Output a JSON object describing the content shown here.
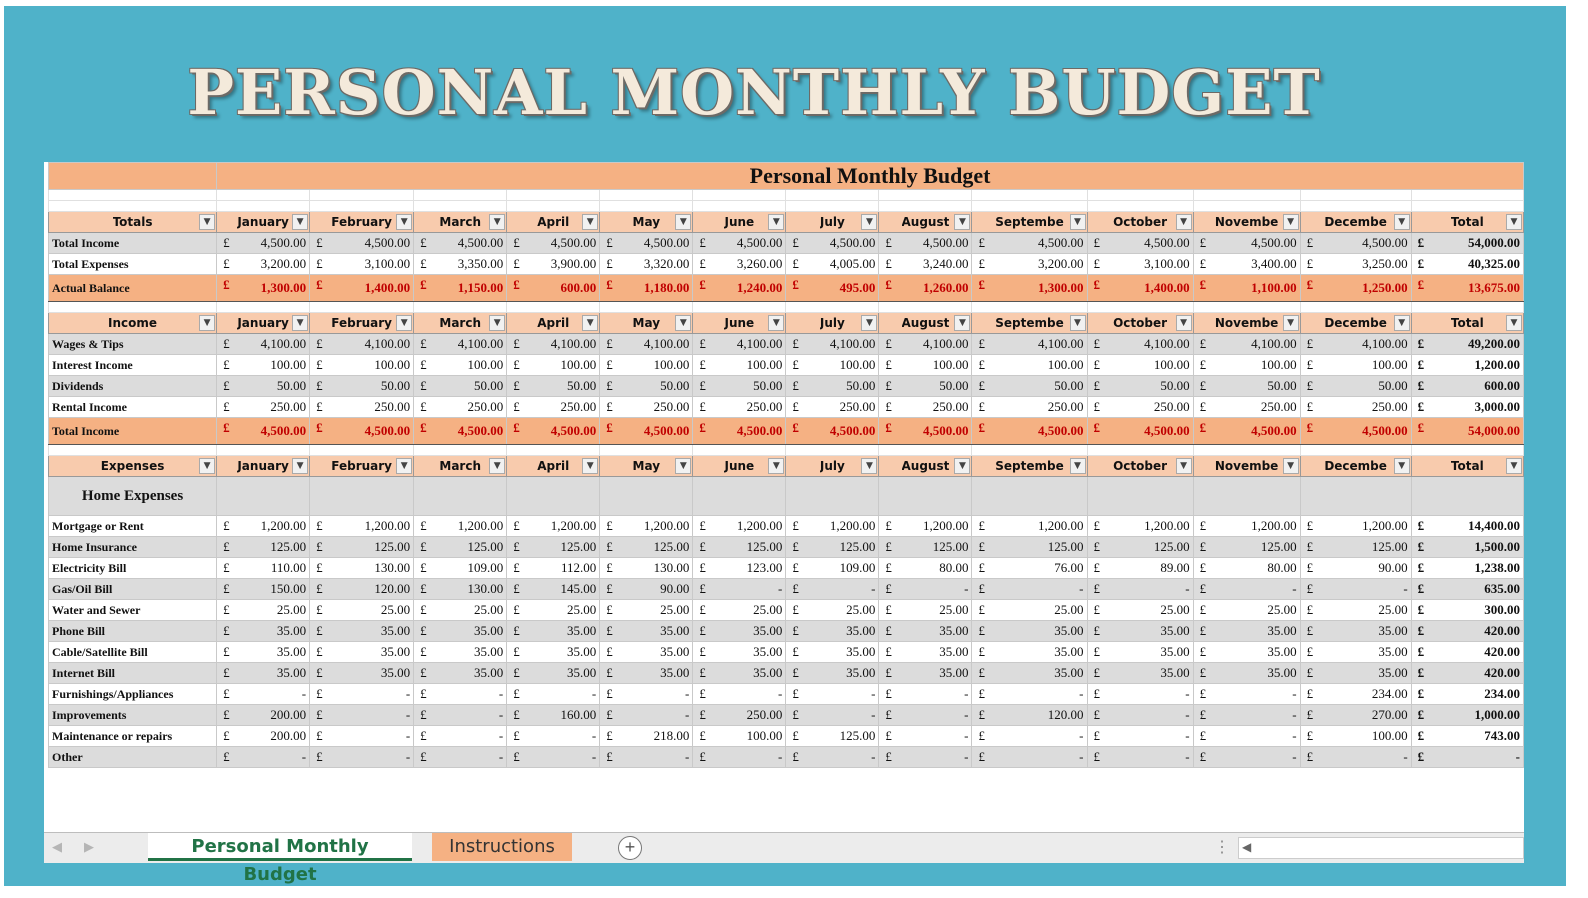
{
  "banner_title": "PERSONAL MONTHLY BUDGET",
  "sheet_title": "Personal Monthly Budget",
  "currency": "£",
  "months": [
    "January",
    "February",
    "March",
    "April",
    "May",
    "June",
    "July",
    "August",
    "September",
    "October",
    "November",
    "December",
    "Total"
  ],
  "header_display": [
    "January",
    "February",
    "March",
    "April",
    "May",
    "June",
    "July",
    "August",
    "Septembe",
    "October",
    "Novembe",
    "Decembe",
    "Total"
  ],
  "sections": [
    {
      "header": "Totals",
      "rows": [
        {
          "label": "Total Income",
          "style": "grey",
          "values": [
            "4,500.00",
            "4,500.00",
            "4,500.00",
            "4,500.00",
            "4,500.00",
            "4,500.00",
            "4,500.00",
            "4,500.00",
            "4,500.00",
            "4,500.00",
            "4,500.00",
            "4,500.00",
            "54,000.00"
          ]
        },
        {
          "label": "Total Expenses",
          "style": "white",
          "values": [
            "3,200.00",
            "3,100.00",
            "3,350.00",
            "3,900.00",
            "3,320.00",
            "3,260.00",
            "4,005.00",
            "3,240.00",
            "3,200.00",
            "3,100.00",
            "3,400.00",
            "3,250.00",
            "40,325.00"
          ]
        },
        {
          "label": "Actual Balance",
          "style": "sum",
          "values": [
            "1,300.00",
            "1,400.00",
            "1,150.00",
            "600.00",
            "1,180.00",
            "1,240.00",
            "495.00",
            "1,260.00",
            "1,300.00",
            "1,400.00",
            "1,100.00",
            "1,250.00",
            "13,675.00"
          ]
        }
      ]
    },
    {
      "header": "Income",
      "rows": [
        {
          "label": "Wages & Tips",
          "style": "grey",
          "values": [
            "4,100.00",
            "4,100.00",
            "4,100.00",
            "4,100.00",
            "4,100.00",
            "4,100.00",
            "4,100.00",
            "4,100.00",
            "4,100.00",
            "4,100.00",
            "4,100.00",
            "4,100.00",
            "49,200.00"
          ]
        },
        {
          "label": "Interest Income",
          "style": "white",
          "values": [
            "100.00",
            "100.00",
            "100.00",
            "100.00",
            "100.00",
            "100.00",
            "100.00",
            "100.00",
            "100.00",
            "100.00",
            "100.00",
            "100.00",
            "1,200.00"
          ]
        },
        {
          "label": "Dividends",
          "style": "grey",
          "values": [
            "50.00",
            "50.00",
            "50.00",
            "50.00",
            "50.00",
            "50.00",
            "50.00",
            "50.00",
            "50.00",
            "50.00",
            "50.00",
            "50.00",
            "600.00"
          ]
        },
        {
          "label": "Rental Income",
          "style": "white",
          "values": [
            "250.00",
            "250.00",
            "250.00",
            "250.00",
            "250.00",
            "250.00",
            "250.00",
            "250.00",
            "250.00",
            "250.00",
            "250.00",
            "250.00",
            "3,000.00"
          ]
        },
        {
          "label": "Total Income",
          "style": "sum",
          "values": [
            "4,500.00",
            "4,500.00",
            "4,500.00",
            "4,500.00",
            "4,500.00",
            "4,500.00",
            "4,500.00",
            "4,500.00",
            "4,500.00",
            "4,500.00",
            "4,500.00",
            "4,500.00",
            "54,000.00"
          ]
        }
      ]
    },
    {
      "header": "Expenses",
      "category": "Home Expenses",
      "rows": [
        {
          "label": "Mortgage or Rent",
          "style": "white",
          "values": [
            "1,200.00",
            "1,200.00",
            "1,200.00",
            "1,200.00",
            "1,200.00",
            "1,200.00",
            "1,200.00",
            "1,200.00",
            "1,200.00",
            "1,200.00",
            "1,200.00",
            "1,200.00",
            "14,400.00"
          ]
        },
        {
          "label": "Home Insurance",
          "style": "grey",
          "values": [
            "125.00",
            "125.00",
            "125.00",
            "125.00",
            "125.00",
            "125.00",
            "125.00",
            "125.00",
            "125.00",
            "125.00",
            "125.00",
            "125.00",
            "1,500.00"
          ]
        },
        {
          "label": "Electricity Bill",
          "style": "white",
          "values": [
            "110.00",
            "130.00",
            "109.00",
            "112.00",
            "130.00",
            "123.00",
            "109.00",
            "80.00",
            "76.00",
            "89.00",
            "80.00",
            "90.00",
            "1,238.00"
          ]
        },
        {
          "label": "Gas/Oil Bill",
          "style": "grey",
          "values": [
            "150.00",
            "120.00",
            "130.00",
            "145.00",
            "90.00",
            "-",
            "-",
            "-",
            "-",
            "-",
            "-",
            "-",
            "635.00"
          ]
        },
        {
          "label": "Water and Sewer",
          "style": "white",
          "values": [
            "25.00",
            "25.00",
            "25.00",
            "25.00",
            "25.00",
            "25.00",
            "25.00",
            "25.00",
            "25.00",
            "25.00",
            "25.00",
            "25.00",
            "300.00"
          ]
        },
        {
          "label": "Phone Bill",
          "style": "grey",
          "values": [
            "35.00",
            "35.00",
            "35.00",
            "35.00",
            "35.00",
            "35.00",
            "35.00",
            "35.00",
            "35.00",
            "35.00",
            "35.00",
            "35.00",
            "420.00"
          ]
        },
        {
          "label": "Cable/Satellite Bill",
          "style": "white",
          "values": [
            "35.00",
            "35.00",
            "35.00",
            "35.00",
            "35.00",
            "35.00",
            "35.00",
            "35.00",
            "35.00",
            "35.00",
            "35.00",
            "35.00",
            "420.00"
          ]
        },
        {
          "label": "Internet Bill",
          "style": "grey",
          "values": [
            "35.00",
            "35.00",
            "35.00",
            "35.00",
            "35.00",
            "35.00",
            "35.00",
            "35.00",
            "35.00",
            "35.00",
            "35.00",
            "35.00",
            "420.00"
          ]
        },
        {
          "label": "Furnishings/Appliances",
          "style": "white",
          "values": [
            "-",
            "-",
            "-",
            "-",
            "-",
            "-",
            "-",
            "-",
            "-",
            "-",
            "-",
            "234.00",
            "234.00"
          ]
        },
        {
          "label": "Improvements",
          "style": "grey",
          "values": [
            "200.00",
            "-",
            "-",
            "160.00",
            "-",
            "250.00",
            "-",
            "-",
            "120.00",
            "-",
            "-",
            "270.00",
            "1,000.00"
          ]
        },
        {
          "label": "Maintenance or repairs",
          "style": "white",
          "values": [
            "200.00",
            "-",
            "-",
            "-",
            "218.00",
            "100.00",
            "125.00",
            "-",
            "-",
            "-",
            "-",
            "100.00",
            "743.00"
          ]
        },
        {
          "label": "Other",
          "style": "grey",
          "values": [
            "-",
            "-",
            "-",
            "-",
            "-",
            "-",
            "-",
            "-",
            "-",
            "-",
            "-",
            "-",
            "-"
          ]
        }
      ]
    }
  ],
  "tabs": {
    "active": "Personal Monthly Budget",
    "other": "Instructions"
  },
  "icons": {
    "add": "plus-circle-icon",
    "nav_prev": "chevron-left-icon",
    "nav_next": "chevron-right-icon",
    "scroll_left": "chevron-left-icon",
    "dropdown": "dropdown-arrow-icon"
  },
  "colors": {
    "frame": "#4fb2c9",
    "header_fill": "#f8cbad",
    "title_fill": "#f5b183",
    "total_text": "#c00000",
    "tab_active": "#217346"
  }
}
